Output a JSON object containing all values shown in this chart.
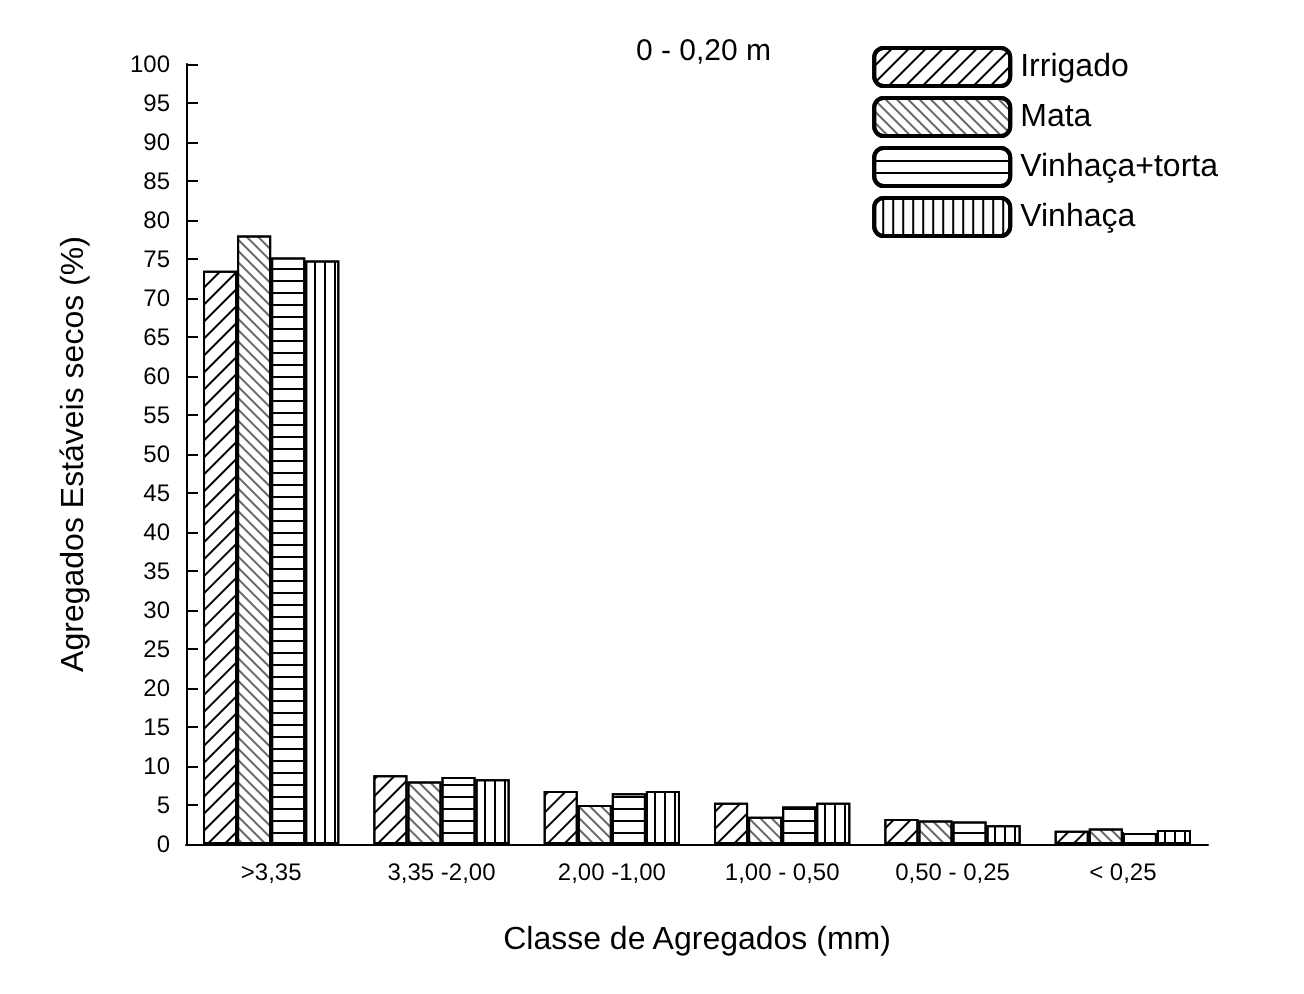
{
  "chart_data": {
    "type": "bar",
    "xlabel": "Classe de Agregados (mm)",
    "ylabel": "Agregados Estáveis secos (%)",
    "annotations": [
      "0 - 0,20 m"
    ],
    "categories": [
      ">3,35",
      "3,35 -2,00",
      "2,00 -1,00",
      "1,00 - 0,50",
      "0,50 - 0,25",
      "< 0,25"
    ],
    "series": [
      {
        "name": "Irrigado",
        "color": "#ffffff",
        "values": [
          73.5,
          8.8,
          6.8,
          5.3,
          3.2,
          1.7
        ]
      },
      {
        "name": "Mata",
        "color": "#ffffff",
        "values": [
          78,
          8.0,
          5.0,
          3.5,
          3.0,
          2.0
        ]
      },
      {
        "name": "Vinhaça+torta",
        "color": "#ffffff",
        "values": [
          75.2,
          8.6,
          6.5,
          4.8,
          2.9,
          1.4
        ]
      },
      {
        "name": "Vinhaça",
        "color": "#ffffff",
        "values": [
          74.8,
          8.3,
          6.8,
          5.3,
          2.4,
          1.8
        ]
      }
    ],
    "ylim": [
      0,
      100
    ],
    "yticks": [
      0,
      5,
      10,
      15,
      20,
      25,
      30,
      35,
      40,
      45,
      50,
      55,
      60,
      65,
      70,
      75,
      80,
      85,
      90,
      95,
      100
    ],
    "grid": false,
    "legend": "top right"
  }
}
